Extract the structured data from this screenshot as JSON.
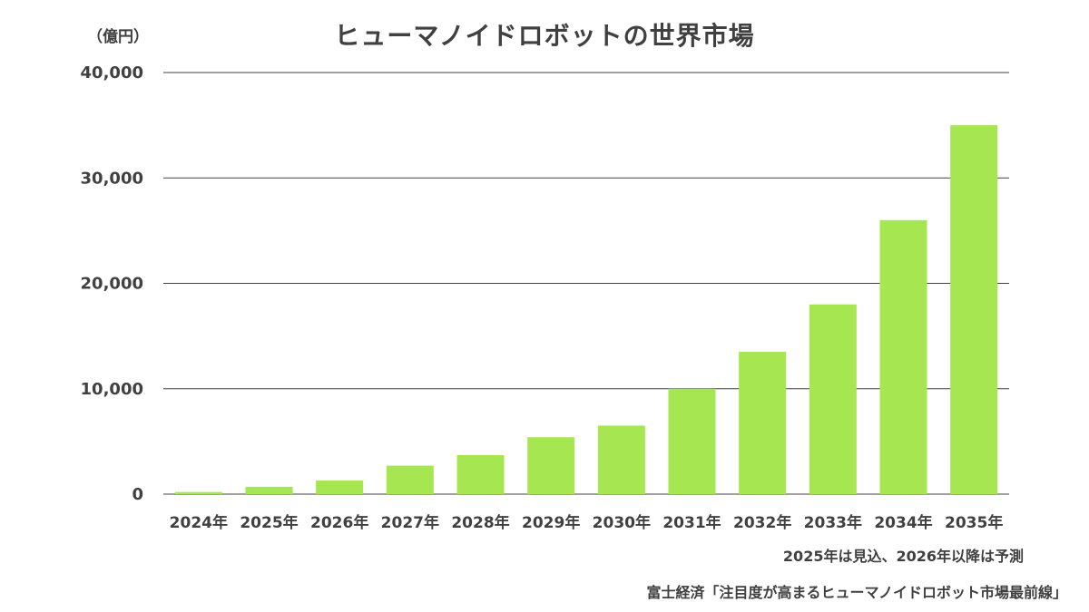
{
  "header": {
    "unit": "（億円）",
    "title": "ヒューマノイドロボットの世界市場"
  },
  "footer": {
    "note": "2025年は見込、2026年以降は予測",
    "source": "富士経済「注目度が高まるヒューマノイドロボット市場最前線」"
  },
  "colors": {
    "bar": "#a5e651",
    "grid": "#404040",
    "text": "#404040"
  },
  "chart_data": {
    "type": "bar",
    "title": "ヒューマノイドロボットの世界市場",
    "ylabel": "（億円）",
    "xlabel": "",
    "categories": [
      "2024年",
      "2025年",
      "2026年",
      "2027年",
      "2028年",
      "2029年",
      "2030年",
      "2031年",
      "2032年",
      "2033年",
      "2034年",
      "2035年"
    ],
    "values": [
      200,
      700,
      1300,
      2700,
      3700,
      5400,
      6500,
      10000,
      13500,
      18000,
      26000,
      35000
    ],
    "ylim": [
      0,
      40000
    ],
    "yticks": [
      0,
      10000,
      20000,
      30000,
      40000
    ],
    "ytick_labels": [
      "0",
      "10,000",
      "20,000",
      "30,000",
      "40,000"
    ],
    "grid": true,
    "legend": "none"
  }
}
